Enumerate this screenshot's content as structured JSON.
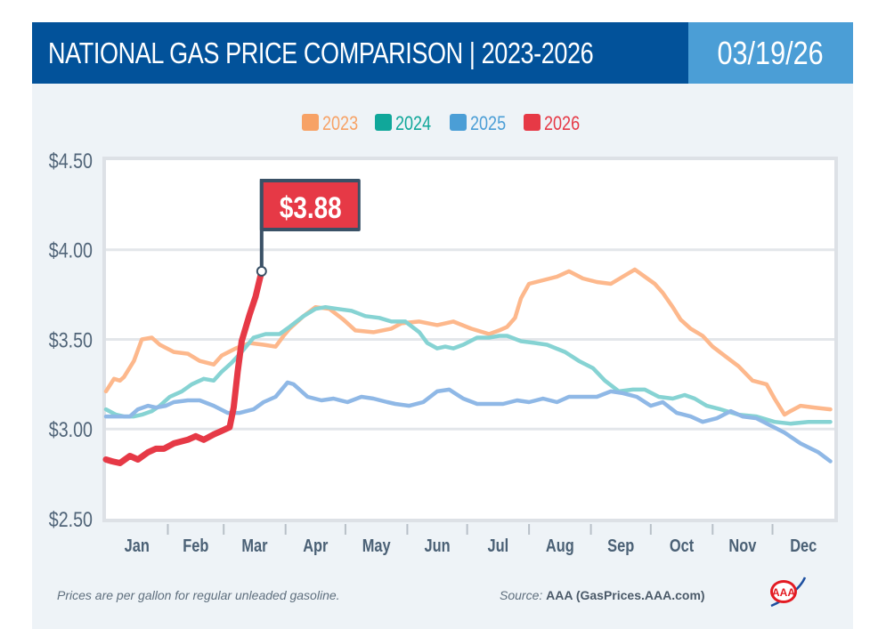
{
  "header": {
    "title": "NATIONAL GAS PRICE COMPARISON | 2023-2026",
    "date": "03/19/26"
  },
  "colors": {
    "header_bg": "#02529a",
    "date_bg": "#4b9ed6",
    "series_2023": "#fdb88c",
    "series_2024": "#86d3d3",
    "series_2025": "#8fb8e6",
    "series_2026": "#e63946",
    "legend_2023": "#f7a266",
    "legend_2024": "#10a79a",
    "legend_2025": "#4b9ed6",
    "legend_2026": "#e63946",
    "flag_pole": "#3a5166"
  },
  "chart_data": {
    "type": "line",
    "title": "NATIONAL GAS PRICE COMPARISON | 2023-2026",
    "xlabel": "",
    "ylabel": "",
    "x_unit": "day of year",
    "xlim": [
      0,
      365
    ],
    "ylim": [
      2.5,
      4.5
    ],
    "yticks": [
      2.5,
      3.0,
      3.5,
      4.0,
      4.5
    ],
    "ytick_labels": [
      "$2.50",
      "$3.00",
      "$3.50",
      "$4.00",
      "$4.50"
    ],
    "month_labels": [
      "Jan",
      "Feb",
      "Mar",
      "Apr",
      "May",
      "Jun",
      "Jul",
      "Aug",
      "Sep",
      "Oct",
      "Nov",
      "Dec"
    ],
    "grid": true,
    "legend_position": "top-center",
    "annotation": {
      "label": "$3.88",
      "series": "2026",
      "x": 78,
      "y": 3.88
    },
    "series": [
      {
        "name": "2023",
        "points": [
          [
            0,
            3.21
          ],
          [
            4,
            3.28
          ],
          [
            7,
            3.27
          ],
          [
            9,
            3.29
          ],
          [
            14,
            3.38
          ],
          [
            18,
            3.5
          ],
          [
            23,
            3.51
          ],
          [
            27,
            3.47
          ],
          [
            34,
            3.43
          ],
          [
            41,
            3.42
          ],
          [
            47,
            3.38
          ],
          [
            54,
            3.36
          ],
          [
            58,
            3.41
          ],
          [
            65,
            3.45
          ],
          [
            72,
            3.48
          ],
          [
            79,
            3.47
          ],
          [
            85,
            3.46
          ],
          [
            89,
            3.52
          ],
          [
            92,
            3.56
          ],
          [
            99,
            3.63
          ],
          [
            105,
            3.68
          ],
          [
            112,
            3.67
          ],
          [
            119,
            3.61
          ],
          [
            125,
            3.55
          ],
          [
            134,
            3.54
          ],
          [
            143,
            3.56
          ],
          [
            148,
            3.59
          ],
          [
            157,
            3.6
          ],
          [
            166,
            3.58
          ],
          [
            174,
            3.6
          ],
          [
            183,
            3.56
          ],
          [
            192,
            3.53
          ],
          [
            197,
            3.55
          ],
          [
            201,
            3.57
          ],
          [
            205,
            3.62
          ],
          [
            208,
            3.73
          ],
          [
            212,
            3.81
          ],
          [
            219,
            3.83
          ],
          [
            226,
            3.85
          ],
          [
            232,
            3.88
          ],
          [
            239,
            3.84
          ],
          [
            246,
            3.82
          ],
          [
            253,
            3.81
          ],
          [
            259,
            3.85
          ],
          [
            265,
            3.89
          ],
          [
            270,
            3.85
          ],
          [
            275,
            3.81
          ],
          [
            279,
            3.76
          ],
          [
            284,
            3.68
          ],
          [
            288,
            3.61
          ],
          [
            293,
            3.56
          ],
          [
            299,
            3.52
          ],
          [
            304,
            3.46
          ],
          [
            311,
            3.4
          ],
          [
            317,
            3.35
          ],
          [
            324,
            3.27
          ],
          [
            331,
            3.25
          ],
          [
            335,
            3.17
          ],
          [
            340,
            3.08
          ],
          [
            343,
            3.1
          ],
          [
            348,
            3.13
          ],
          [
            355,
            3.12
          ],
          [
            363,
            3.11
          ]
        ]
      },
      {
        "name": "2024",
        "points": [
          [
            0,
            3.11
          ],
          [
            5,
            3.08
          ],
          [
            9,
            3.07
          ],
          [
            14,
            3.07
          ],
          [
            18,
            3.08
          ],
          [
            23,
            3.1
          ],
          [
            27,
            3.13
          ],
          [
            32,
            3.18
          ],
          [
            38,
            3.21
          ],
          [
            43,
            3.25
          ],
          [
            49,
            3.28
          ],
          [
            54,
            3.27
          ],
          [
            58,
            3.32
          ],
          [
            63,
            3.37
          ],
          [
            68,
            3.43
          ],
          [
            74,
            3.51
          ],
          [
            80,
            3.53
          ],
          [
            87,
            3.53
          ],
          [
            92,
            3.57
          ],
          [
            99,
            3.63
          ],
          [
            105,
            3.67
          ],
          [
            110,
            3.68
          ],
          [
            116,
            3.67
          ],
          [
            123,
            3.66
          ],
          [
            130,
            3.63
          ],
          [
            137,
            3.62
          ],
          [
            143,
            3.6
          ],
          [
            150,
            3.6
          ],
          [
            157,
            3.54
          ],
          [
            161,
            3.48
          ],
          [
            166,
            3.45
          ],
          [
            170,
            3.46
          ],
          [
            174,
            3.45
          ],
          [
            179,
            3.47
          ],
          [
            186,
            3.51
          ],
          [
            192,
            3.51
          ],
          [
            197,
            3.52
          ],
          [
            201,
            3.52
          ],
          [
            208,
            3.49
          ],
          [
            215,
            3.48
          ],
          [
            221,
            3.47
          ],
          [
            230,
            3.43
          ],
          [
            237,
            3.38
          ],
          [
            244,
            3.34
          ],
          [
            250,
            3.27
          ],
          [
            257,
            3.21
          ],
          [
            264,
            3.22
          ],
          [
            270,
            3.22
          ],
          [
            277,
            3.18
          ],
          [
            284,
            3.17
          ],
          [
            290,
            3.19
          ],
          [
            295,
            3.17
          ],
          [
            301,
            3.13
          ],
          [
            308,
            3.11
          ],
          [
            317,
            3.08
          ],
          [
            326,
            3.07
          ],
          [
            335,
            3.04
          ],
          [
            343,
            3.03
          ],
          [
            352,
            3.04
          ],
          [
            363,
            3.04
          ]
        ]
      },
      {
        "name": "2025",
        "points": [
          [
            0,
            3.07
          ],
          [
            5,
            3.07
          ],
          [
            12,
            3.07
          ],
          [
            16,
            3.11
          ],
          [
            21,
            3.13
          ],
          [
            25,
            3.12
          ],
          [
            30,
            3.13
          ],
          [
            34,
            3.15
          ],
          [
            41,
            3.16
          ],
          [
            47,
            3.16
          ],
          [
            54,
            3.13
          ],
          [
            61,
            3.09
          ],
          [
            67,
            3.09
          ],
          [
            74,
            3.11
          ],
          [
            79,
            3.15
          ],
          [
            85,
            3.18
          ],
          [
            91,
            3.26
          ],
          [
            94,
            3.25
          ],
          [
            101,
            3.18
          ],
          [
            108,
            3.16
          ],
          [
            114,
            3.17
          ],
          [
            121,
            3.15
          ],
          [
            128,
            3.18
          ],
          [
            134,
            3.17
          ],
          [
            141,
            3.15
          ],
          [
            145,
            3.14
          ],
          [
            152,
            3.13
          ],
          [
            159,
            3.15
          ],
          [
            166,
            3.21
          ],
          [
            172,
            3.22
          ],
          [
            179,
            3.17
          ],
          [
            186,
            3.14
          ],
          [
            192,
            3.14
          ],
          [
            199,
            3.14
          ],
          [
            206,
            3.16
          ],
          [
            212,
            3.15
          ],
          [
            219,
            3.17
          ],
          [
            226,
            3.15
          ],
          [
            232,
            3.18
          ],
          [
            239,
            3.18
          ],
          [
            246,
            3.18
          ],
          [
            253,
            3.21
          ],
          [
            259,
            3.2
          ],
          [
            266,
            3.18
          ],
          [
            273,
            3.13
          ],
          [
            279,
            3.15
          ],
          [
            286,
            3.09
          ],
          [
            293,
            3.07
          ],
          [
            299,
            3.04
          ],
          [
            306,
            3.06
          ],
          [
            313,
            3.1
          ],
          [
            319,
            3.07
          ],
          [
            326,
            3.06
          ],
          [
            333,
            3.02
          ],
          [
            340,
            2.98
          ],
          [
            348,
            2.92
          ],
          [
            357,
            2.87
          ],
          [
            363,
            2.82
          ]
        ]
      },
      {
        "name": "2026",
        "points": [
          [
            0,
            2.83
          ],
          [
            3,
            2.82
          ],
          [
            7,
            2.81
          ],
          [
            12,
            2.85
          ],
          [
            16,
            2.83
          ],
          [
            21,
            2.87
          ],
          [
            25,
            2.89
          ],
          [
            29,
            2.89
          ],
          [
            34,
            2.92
          ],
          [
            41,
            2.94
          ],
          [
            45,
            2.96
          ],
          [
            49,
            2.94
          ],
          [
            54,
            2.97
          ],
          [
            58,
            2.99
          ],
          [
            62,
            3.01
          ],
          [
            64,
            3.12
          ],
          [
            66,
            3.32
          ],
          [
            68,
            3.49
          ],
          [
            72,
            3.64
          ],
          [
            75,
            3.74
          ],
          [
            78,
            3.88
          ]
        ]
      }
    ]
  },
  "legend": [
    {
      "label": "2023"
    },
    {
      "label": "2024"
    },
    {
      "label": "2025"
    },
    {
      "label": "2026"
    }
  ],
  "footer": {
    "note": "Prices are per gallon for regular unleaded gasoline.",
    "source_label": "Source:",
    "source_value": "AAA (GasPrices.AAA.com)",
    "logo_text": "AAA"
  }
}
